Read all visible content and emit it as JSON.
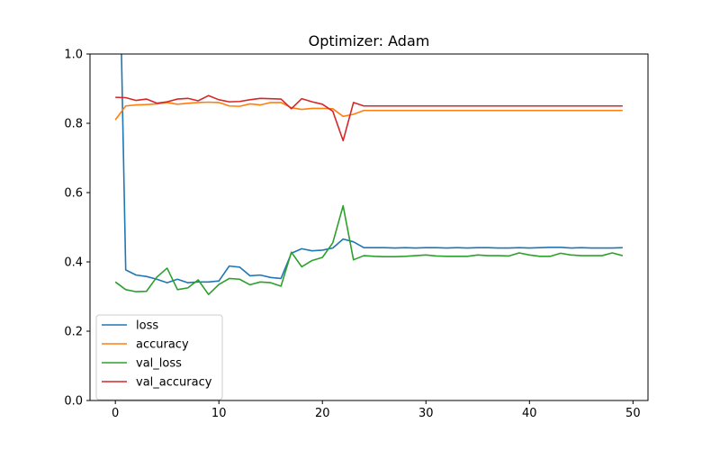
{
  "chart_data": {
    "type": "line",
    "title": "Optimizer: Adam",
    "xlabel": "",
    "ylabel": "",
    "xlim": [
      -2.45,
      51.45
    ],
    "ylim": [
      0.0,
      1.0
    ],
    "xticks": [
      0,
      10,
      20,
      30,
      40,
      50
    ],
    "yticks": [
      0.0,
      0.2,
      0.4,
      0.6,
      0.8,
      1.0
    ],
    "grid": false,
    "legend_position": "lower-left",
    "x": [
      0,
      1,
      2,
      3,
      4,
      5,
      6,
      7,
      8,
      9,
      10,
      11,
      12,
      13,
      14,
      15,
      16,
      17,
      18,
      19,
      20,
      21,
      22,
      23,
      24,
      25,
      26,
      27,
      28,
      29,
      30,
      31,
      32,
      33,
      34,
      35,
      36,
      37,
      38,
      39,
      40,
      41,
      42,
      43,
      44,
      45,
      46,
      47,
      48,
      49
    ],
    "series": [
      {
        "name": "loss",
        "color": "#1f77b4",
        "values": [
          1.9,
          0.377,
          0.362,
          0.358,
          0.35,
          0.34,
          0.35,
          0.34,
          0.342,
          0.342,
          0.345,
          0.388,
          0.385,
          0.36,
          0.362,
          0.355,
          0.352,
          0.425,
          0.438,
          0.432,
          0.434,
          0.44,
          0.466,
          0.458,
          0.441,
          0.441,
          0.441,
          0.44,
          0.441,
          0.44,
          0.441,
          0.441,
          0.44,
          0.441,
          0.44,
          0.441,
          0.441,
          0.44,
          0.44,
          0.441,
          0.44,
          0.441,
          0.442,
          0.442,
          0.44,
          0.441,
          0.44,
          0.44,
          0.44,
          0.441
        ]
      },
      {
        "name": "accuracy",
        "color": "#ff7f0e",
        "values": [
          0.81,
          0.85,
          0.853,
          0.854,
          0.856,
          0.86,
          0.855,
          0.858,
          0.86,
          0.861,
          0.86,
          0.85,
          0.849,
          0.856,
          0.853,
          0.86,
          0.86,
          0.845,
          0.84,
          0.843,
          0.843,
          0.842,
          0.82,
          0.826,
          0.837,
          0.837,
          0.837,
          0.837,
          0.837,
          0.837,
          0.837,
          0.837,
          0.837,
          0.837,
          0.837,
          0.837,
          0.837,
          0.837,
          0.837,
          0.837,
          0.837,
          0.837,
          0.837,
          0.837,
          0.837,
          0.837,
          0.837,
          0.837,
          0.837,
          0.837
        ]
      },
      {
        "name": "val_loss",
        "color": "#2ca02c",
        "values": [
          0.342,
          0.32,
          0.314,
          0.315,
          0.356,
          0.382,
          0.32,
          0.325,
          0.348,
          0.306,
          0.335,
          0.352,
          0.35,
          0.334,
          0.342,
          0.34,
          0.33,
          0.428,
          0.386,
          0.404,
          0.413,
          0.455,
          0.562,
          0.406,
          0.418,
          0.416,
          0.415,
          0.415,
          0.416,
          0.418,
          0.42,
          0.417,
          0.416,
          0.416,
          0.416,
          0.42,
          0.418,
          0.418,
          0.417,
          0.426,
          0.42,
          0.416,
          0.416,
          0.425,
          0.42,
          0.418,
          0.418,
          0.418,
          0.426,
          0.418
        ]
      },
      {
        "name": "val_accuracy",
        "color": "#d62728",
        "values": [
          0.875,
          0.874,
          0.866,
          0.87,
          0.858,
          0.862,
          0.87,
          0.872,
          0.865,
          0.88,
          0.868,
          0.862,
          0.863,
          0.868,
          0.872,
          0.871,
          0.87,
          0.842,
          0.871,
          0.862,
          0.855,
          0.835,
          0.75,
          0.86,
          0.85,
          0.85,
          0.85,
          0.85,
          0.85,
          0.85,
          0.85,
          0.85,
          0.85,
          0.85,
          0.85,
          0.85,
          0.85,
          0.85,
          0.85,
          0.85,
          0.85,
          0.85,
          0.85,
          0.85,
          0.85,
          0.85,
          0.85,
          0.85,
          0.85,
          0.85
        ]
      }
    ]
  }
}
